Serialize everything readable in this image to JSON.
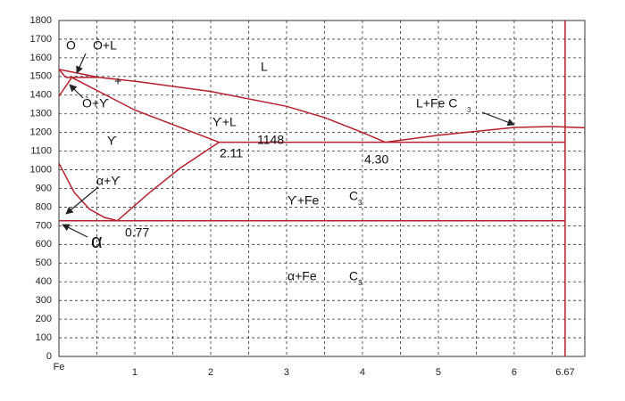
{
  "chart_data": {
    "type": "line",
    "xlim": [
      0,
      6.93
    ],
    "ylim": [
      0,
      1800
    ],
    "xticks": [
      {
        "value": 0,
        "label": "Fe"
      },
      1,
      2,
      3,
      4,
      5,
      6,
      6.67
    ],
    "yticks": [
      0,
      100,
      200,
      300,
      400,
      500,
      600,
      700,
      800,
      900,
      1000,
      1100,
      1200,
      1300,
      1400,
      1500,
      1600,
      1700,
      1800
    ],
    "x_minor_gridlines": [
      0.5,
      1.5,
      2.5,
      3.5,
      4.5,
      5.5,
      6.5
    ],
    "grid": true,
    "series": [
      {
        "color": "#b5202e",
        "x": [
          0,
          0.53,
          1,
          2,
          3,
          3.5,
          4,
          4.3
        ],
        "values": [
          1538,
          1495,
          1475,
          1420,
          1340,
          1280,
          1200,
          1148
        ]
      },
      {
        "color": "#b5202e",
        "x": [
          4.3,
          5,
          6,
          6.5,
          6.93
        ],
        "values": [
          1148,
          1185,
          1227,
          1232,
          1225
        ]
      },
      {
        "color": "#b5202e",
        "x": [
          0.17,
          1,
          2.11
        ],
        "values": [
          1495,
          1320,
          1148
        ]
      },
      {
        "color": "#b5202e",
        "x": [
          2.11,
          6.67
        ],
        "values": [
          1148,
          1148
        ]
      },
      {
        "color": "#b5202e",
        "x": [
          0,
          0.2,
          0.4,
          0.6,
          0.77
        ],
        "values": [
          1035,
          880,
          790,
          745,
          727
        ]
      },
      {
        "color": "#b5202e",
        "x": [
          0.77,
          1.2,
          1.6,
          2.11
        ],
        "values": [
          727,
          880,
          1010,
          1148
        ]
      },
      {
        "color": "#b5202e",
        "x": [
          0,
          6.67
        ],
        "values": [
          727,
          727
        ]
      },
      {
        "color": "#b5202e",
        "x": [
          0,
          0.09
        ],
        "values": [
          1538,
          1495
        ]
      },
      {
        "color": "#b5202e",
        "x": [
          0.09,
          0.53
        ],
        "values": [
          1495,
          1495
        ]
      },
      {
        "color": "#b5202e",
        "x": [
          0,
          0.17
        ],
        "values": [
          1394,
          1495
        ]
      },
      {
        "color": "#b5202e",
        "x": [
          6.67,
          6.67
        ],
        "values": [
          0,
          1800
        ]
      }
    ],
    "annotations": [
      "Ò",
      "Ò+L",
      "+",
      "L",
      "Ò+Ƴ",
      "Ƴ+L",
      "1148",
      "Ƴ",
      "2.11",
      "4.30",
      "L+Fe C",
      "3",
      "α+Ƴ",
      "Ƴ+Fe",
      "C",
      "3",
      "0.77",
      "α",
      "α+Fe",
      "C",
      "3"
    ]
  }
}
